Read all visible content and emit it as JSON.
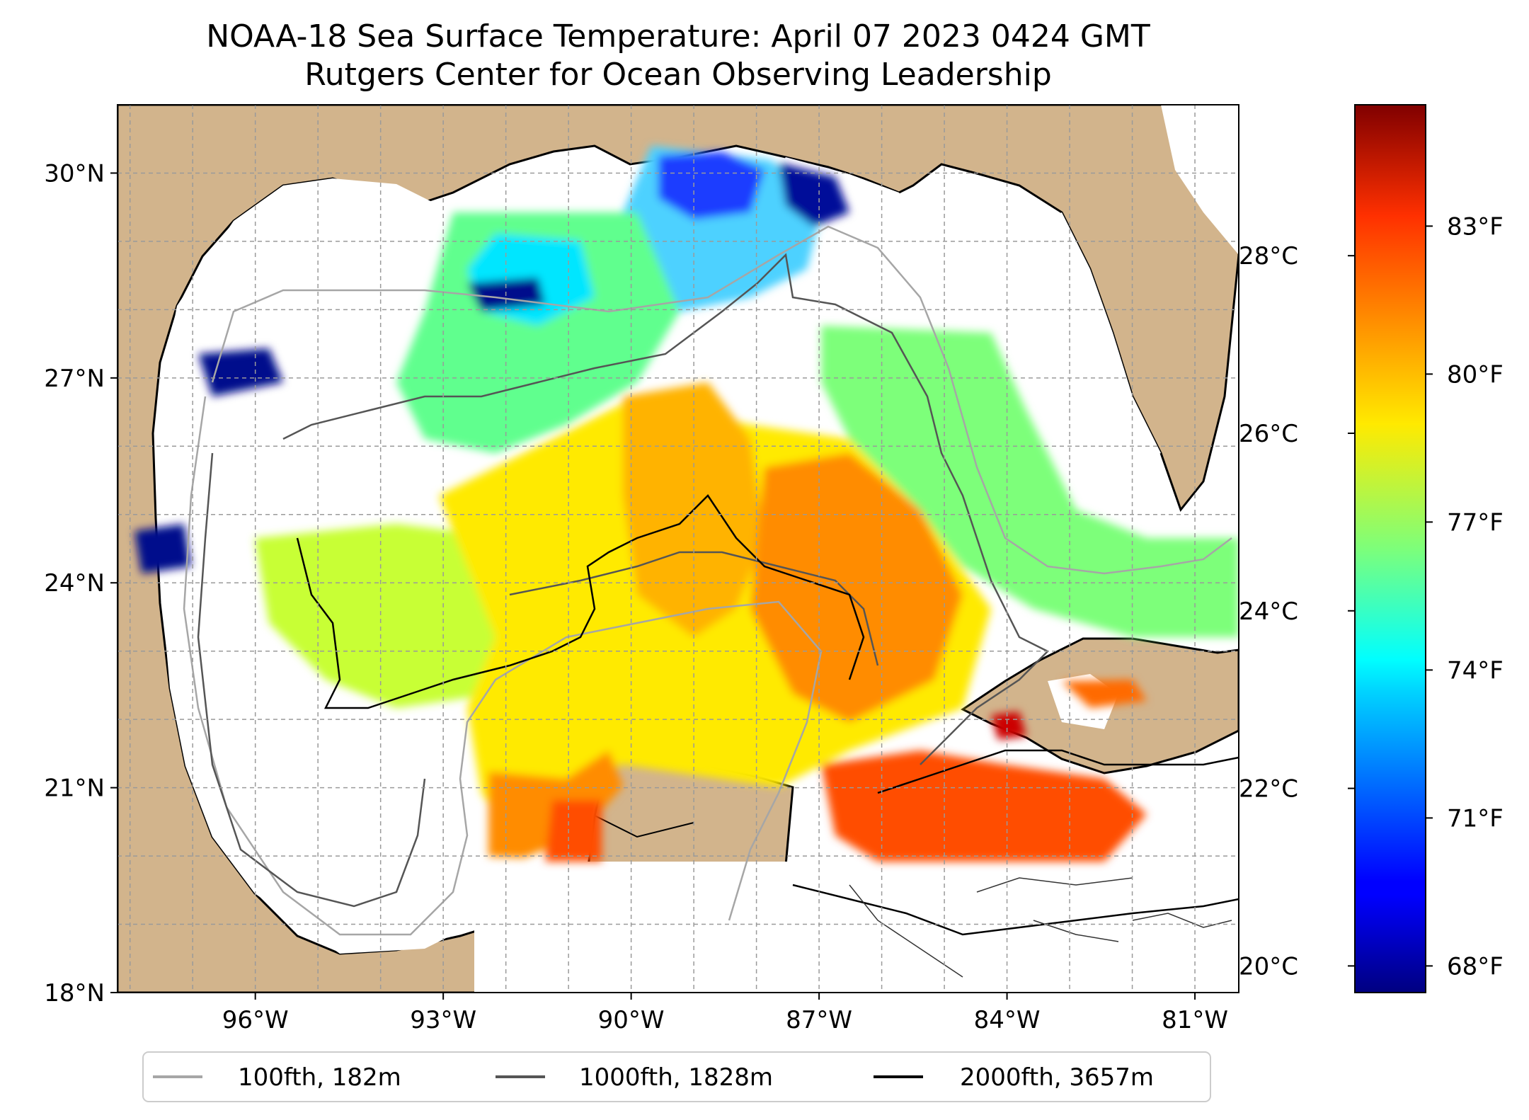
{
  "title": {
    "line1": "NOAA-18 Sea Surface Temperature: April 07 2023 0424 GMT",
    "line2": "Rutgers Center for Ocean Observing Leadership"
  },
  "map": {
    "lon_range": [
      -98.2,
      -80.3
    ],
    "lat_range": [
      18.0,
      31.0
    ],
    "lat_ticks": [
      {
        "value": 18,
        "label": "18°N"
      },
      {
        "value": 21,
        "label": "21°N"
      },
      {
        "value": 24,
        "label": "24°N"
      },
      {
        "value": 27,
        "label": "27°N"
      },
      {
        "value": 30,
        "label": "30°N"
      }
    ],
    "lon_ticks": [
      {
        "value": -96,
        "label": "96°W"
      },
      {
        "value": -93,
        "label": "93°W"
      },
      {
        "value": -90,
        "label": "90°W"
      },
      {
        "value": -87,
        "label": "87°W"
      },
      {
        "value": -84,
        "label": "84°W"
      },
      {
        "value": -81,
        "label": "81°W"
      }
    ],
    "gridlines": true,
    "land_color": "#d2b48c",
    "nodata_color": "#ffffff"
  },
  "colorbar": {
    "celsius_ticks": [
      {
        "value": 20,
        "label": "20°C"
      },
      {
        "value": 22,
        "label": "22°C"
      },
      {
        "value": 24,
        "label": "24°C"
      },
      {
        "value": 26,
        "label": "26°C"
      },
      {
        "value": 28,
        "label": "28°C"
      }
    ],
    "fahrenheit_ticks": [
      {
        "value": 68,
        "label": "68°F"
      },
      {
        "value": 71,
        "label": "71°F"
      },
      {
        "value": 74,
        "label": "74°F"
      },
      {
        "value": 77,
        "label": "77°F"
      },
      {
        "value": 80,
        "label": "80°F"
      },
      {
        "value": 83,
        "label": "83°F"
      }
    ],
    "colormap": "jet"
  },
  "legend": {
    "items": [
      {
        "label": "100fth, 182m",
        "color": "#a6a6a6"
      },
      {
        "label": "1000fth, 1828m",
        "color": "#555555"
      },
      {
        "label": "2000fth, 3657m",
        "color": "#000000"
      }
    ],
    "placement": "bottom"
  }
}
